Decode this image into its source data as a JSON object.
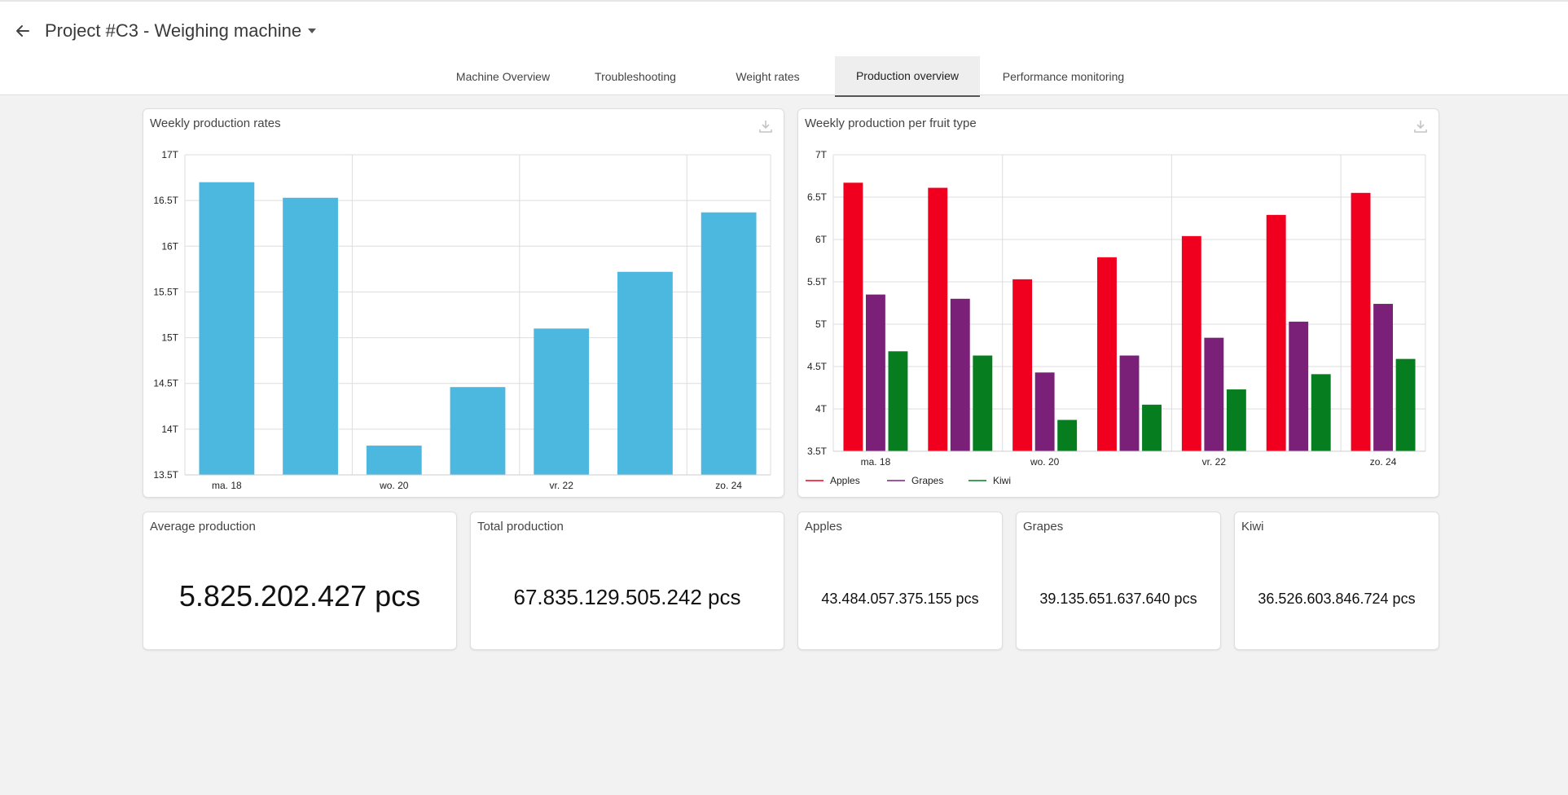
{
  "header": {
    "title": "Project #C3 - Weighing machine",
    "back_icon": "arrow-left-icon",
    "dropdown_icon": "caret-down-icon"
  },
  "tabs": [
    {
      "label": "Machine Overview",
      "active": false
    },
    {
      "label": "Troubleshooting",
      "active": false
    },
    {
      "label": "Weight rates",
      "active": false
    },
    {
      "label": "Production overview",
      "active": true
    },
    {
      "label": "Performance monitoring",
      "active": false
    }
  ],
  "colors": {
    "bar_blue": "#4cb8e0",
    "apples": "#f0001e",
    "grapes": "#7b2079",
    "kiwi": "#067d1f"
  },
  "chart1": {
    "title": "Weekly production rates",
    "download_icon": "download-icon"
  },
  "chart2": {
    "title": "Weekly production per fruit type",
    "download_icon": "download-icon"
  },
  "chart_data": [
    {
      "type": "bar",
      "title": "Weekly production rates",
      "categories": [
        "ma. 18",
        "",
        "wo. 20",
        "",
        "vr. 22",
        "",
        "zo. 24"
      ],
      "x_tick_labels": [
        "ma. 18",
        "wo. 20",
        "vr. 22",
        "zo. 24"
      ],
      "values": [
        16.7,
        16.53,
        13.82,
        14.46,
        15.1,
        15.72,
        16.37
      ],
      "ylim": [
        13.5,
        17
      ],
      "y_tick_labels": [
        "13.5T",
        "14T",
        "14.5T",
        "15T",
        "15.5T",
        "16T",
        "16.5T",
        "17T"
      ],
      "xlabel": "",
      "ylabel": "",
      "grid": true
    },
    {
      "type": "bar",
      "title": "Weekly production per fruit type",
      "categories": [
        "ma. 18",
        "",
        "wo. 20",
        "",
        "vr. 22",
        "",
        "zo. 24"
      ],
      "x_tick_labels": [
        "ma. 18",
        "wo. 20",
        "vr. 22",
        "zo. 24"
      ],
      "series": [
        {
          "name": "Apples",
          "values": [
            6.67,
            6.61,
            5.53,
            5.79,
            6.04,
            6.29,
            6.55
          ]
        },
        {
          "name": "Grapes",
          "values": [
            5.35,
            5.3,
            4.43,
            4.63,
            4.84,
            5.03,
            5.24
          ]
        },
        {
          "name": "Kiwi",
          "values": [
            4.68,
            4.63,
            3.87,
            4.05,
            4.23,
            4.41,
            4.59
          ]
        }
      ],
      "ylim": [
        3.5,
        7
      ],
      "y_tick_labels": [
        "3.5T",
        "4T",
        "4.5T",
        "5T",
        "5.5T",
        "6T",
        "6.5T",
        "7T"
      ],
      "legend": "bottom-left",
      "xlabel": "",
      "ylabel": "",
      "grid": true
    }
  ],
  "stats": {
    "average": {
      "label": "Average production",
      "value": "5.825.202.427 pcs"
    },
    "total": {
      "label": "Total production",
      "value": "67.835.129.505.242 pcs"
    },
    "apples": {
      "label": "Apples",
      "value": "43.484.057.375.155 pcs"
    },
    "grapes": {
      "label": "Grapes",
      "value": "39.135.651.637.640 pcs"
    },
    "kiwi": {
      "label": "Kiwi",
      "value": "36.526.603.846.724 pcs"
    }
  }
}
